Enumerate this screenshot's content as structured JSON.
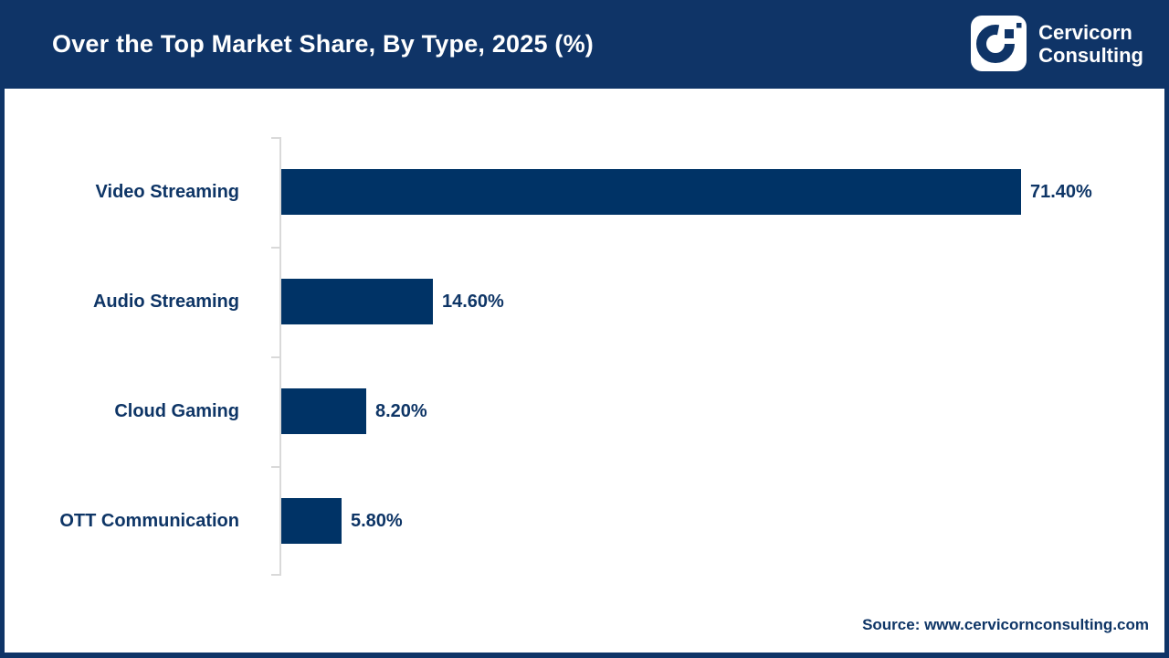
{
  "header": {
    "title": "Over the Top Market Share, By Type, 2025 (%)",
    "logo": {
      "line1": "Cervicorn",
      "line2": "Consulting"
    }
  },
  "chart_data": {
    "type": "bar",
    "orientation": "horizontal",
    "title": "Over the Top Market Share, By Type, 2025 (%)",
    "categories": [
      "Video Streaming",
      "Audio Streaming",
      "Cloud Gaming",
      "OTT Communication"
    ],
    "values": [
      71.4,
      14.6,
      8.2,
      5.8
    ],
    "value_labels": [
      "71.40%",
      "14.60%",
      "8.20%",
      "5.80%"
    ],
    "xlabel": "",
    "ylabel": "",
    "xlim": [
      0,
      80
    ],
    "grid": false,
    "legend": false,
    "bar_color": "#003366",
    "axis_color": "#d9d9d9"
  },
  "footer": {
    "source": "Source: www.cervicornconsulting.com"
  },
  "colors": {
    "header_bg": "#0f3467",
    "bar": "#003366",
    "label_text": "#0e3566",
    "axis": "#d9d9d9"
  }
}
